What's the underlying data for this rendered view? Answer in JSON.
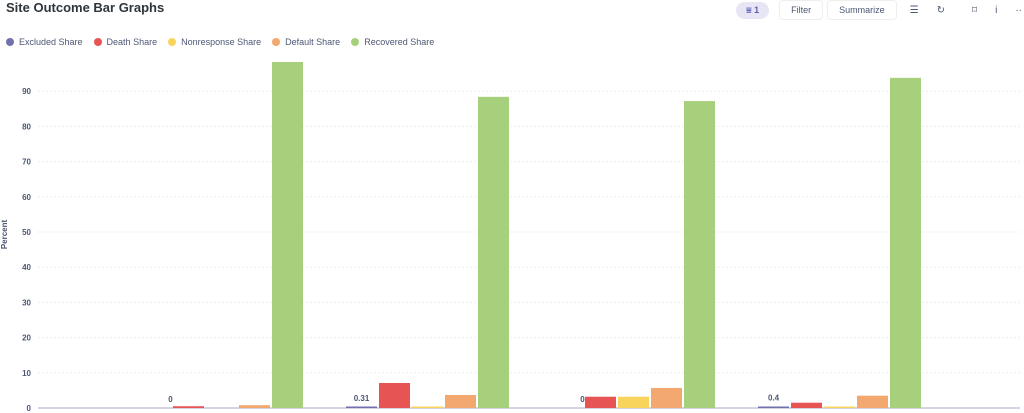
{
  "header": {
    "title": "Site Outcome Bar Graphs",
    "filter_count": "1",
    "filter_label": "Filter",
    "summarize_label": "Summarize",
    "icons": [
      "filter-icon",
      "list-icon",
      "refresh-icon",
      "bookmark-icon",
      "info-icon",
      "more-icon"
    ]
  },
  "chart_data": {
    "type": "bar",
    "ylabel": "Percent",
    "ylim": [
      0,
      100
    ],
    "yticks": [
      0,
      10,
      20,
      30,
      40,
      50,
      60,
      70,
      80,
      90
    ],
    "grid": true,
    "legend_position": "top-left",
    "categories": [
      "",
      "",
      "",
      ""
    ],
    "series": [
      {
        "name": "Excluded Share",
        "color": "#7172ad",
        "values": [
          0,
          0.31,
          0,
          0.4
        ]
      },
      {
        "name": "Death Share",
        "color": "#e75454",
        "values": [
          0.5,
          7.1,
          3.2,
          1.5
        ]
      },
      {
        "name": "Nonresponse Share",
        "color": "#f9d45c",
        "values": [
          0,
          0.3,
          3.2,
          0.3
        ]
      },
      {
        "name": "Default Share",
        "color": "#f2a86f",
        "values": [
          0.8,
          3.7,
          5.7,
          3.5
        ]
      },
      {
        "name": "Recovered Share",
        "color": "#a7d07c",
        "values": [
          98.3,
          88.4,
          87.2,
          93.8
        ]
      }
    ],
    "data_labels": [
      {
        "series": 0,
        "index": 0,
        "text": "0"
      },
      {
        "series": 0,
        "index": 1,
        "text": "0.31"
      },
      {
        "series": 0,
        "index": 2,
        "text": "0"
      },
      {
        "series": 0,
        "index": 3,
        "text": "0.4"
      }
    ]
  }
}
